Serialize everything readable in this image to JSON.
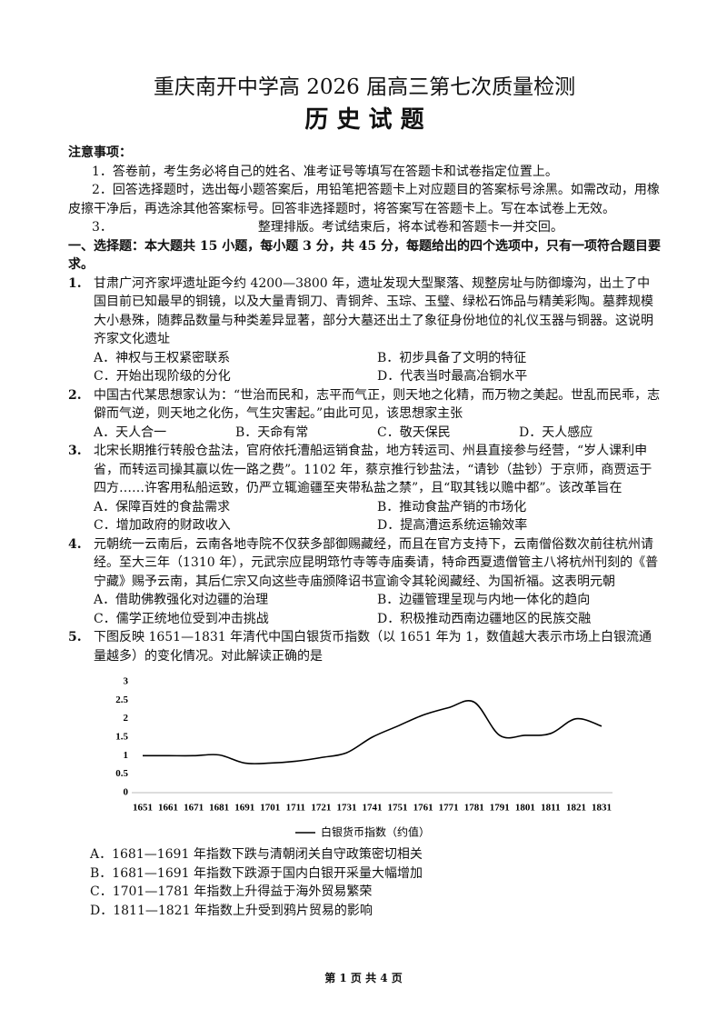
{
  "header": {
    "title": "重庆南开中学高 2026 届高三第七次质量检测",
    "subject": "历 史 试 题"
  },
  "notes": {
    "heading": "注意事项：",
    "items": [
      {
        "number": "1．",
        "text": "答卷前，考生务必将自己的姓名、准考证号等填写在答题卡和试卷指定位置上。"
      },
      {
        "number": "2．",
        "text": "回答选择题时，选出每小题答案后，用铅笔把答题卡上对应题目的答案标号涂黑。如需改动，用橡皮擦干净后，再选涂其他答案标号。回答非选择题时，将答案写在答题卡上。写在本试卷上无效。"
      },
      {
        "number": "3．",
        "text": "整理排版。考试结束后，将本试卷和答题卡一并交回。"
      }
    ]
  },
  "section": {
    "heading": "一、选择题：本大题共 15 小题，每小题 3 分，共 45 分，每题给出的四个选项中，只有一项符合题目要求。"
  },
  "questions": [
    {
      "number": "1.",
      "stem": "甘肃广河齐家坪遗址距今约 4200—3800 年，遗址发现大型聚落、规整房址与防御壕沟，出土了中国目前已知最早的铜镜，以及大量青铜刀、青铜斧、玉琮、玉璧、绿松石饰品与精美彩陶。墓葬规模大小悬殊，随葬品数量与种类差异显著，部分大墓还出土了象征身份地位的礼仪玉器与铜器。这说明齐家文化遗址",
      "options": [
        "A．神权与王权紧密联系",
        "B．初步具备了文明的特征",
        "C．开始出现阶级的分化",
        "D．代表当时最高冶铜水平"
      ]
    },
    {
      "number": "2.",
      "stem": "中国古代某思想家认为：“世治而民和，志平而气正，则天地之化精，而万物之美起。世乱而民乖，志僻而气逆，则天地之化伤，气生灾害起。”由此可见，该思想家主张",
      "options": [
        "A．天人合一",
        "B．天命有常",
        "C．敬天保民",
        "D．天人感应"
      ]
    },
    {
      "number": "3.",
      "stem": "北宋长期推行转般仓盐法，官府依托漕船运销食盐，地方转运司、州县直接参与经营，“岁人课利申省，而转运司操其赢以佐一路之费”。1102 年，蔡京推行钞盐法，“请钞（盐钞）于京师，商贾运于四方……许客用私船运致，仍严立辄逾疆至夹带私盐之禁”，且“取其钱以赡中都”。该改革旨在",
      "options": [
        "A．保障百姓的食盐需求",
        "B．推动食盐产销的市场化",
        "C．增加政府的财政收入",
        "D．提高漕运系统运输效率"
      ]
    },
    {
      "number": "4.",
      "stem": "元朝统一云南后，云南各地寺院不仅获多部御赐藏经，而且在官方支持下，云南僧俗数次前往杭州请经。至大三年（1310 年），元武宗应昆明筇竹寺等寺庙奏请，特命西夏遗僧管主八将杭州刊刻的《普宁藏》赐予云南，其后仁宗又向这些寺庙颁降诏书宣谕令其轮阅藏经、为国祈福。这表明元朝",
      "options": [
        "A．借助佛教强化对边疆的治理",
        "B．边疆管理呈现与内地一体化的趋向",
        "C．儒学正统地位受到冲击挑战",
        "D．积极推动西南边疆地区的民族交融"
      ]
    },
    {
      "number": "5.",
      "stem": "下图反映 1651—1831 年清代中国白银货币指数（以 1651 年为 1，数值越大表示市场上白银流通量越多）的变化情况。对此解读正确的是",
      "options": [
        "A．1681—1691 年指数下跌与清朝闭关自守政策密切相关",
        "B．1681—1691 年指数下跌源于国内白银开采量大幅增加",
        "C．1701—1781 年指数上升得益于海外贸易繁荣",
        "D．1811—1821 年指数上升受到鸦片贸易的影响"
      ]
    }
  ],
  "chart_data": {
    "type": "line",
    "categories": [
      "1651",
      "1661",
      "1671",
      "1681",
      "1691",
      "1701",
      "1711",
      "1721",
      "1731",
      "1741",
      "1751",
      "1761",
      "1771",
      "1781",
      "1791",
      "1801",
      "1811",
      "1821",
      "1831"
    ],
    "series": [
      {
        "name": "白银货币指数（约值）",
        "color": "#000000",
        "values": [
          1,
          1,
          1,
          1.02,
          0.8,
          0.8,
          0.85,
          0.95,
          1.08,
          1.5,
          1.8,
          2.1,
          2.3,
          2.45,
          1.55,
          1.55,
          1.6,
          2,
          1.8
        ]
      }
    ],
    "ylim": [
      0,
      3
    ],
    "yticks": [
      0,
      0.5,
      1,
      1.5,
      2,
      2.5,
      3
    ],
    "grid": false
  },
  "footer": {
    "page": "第 1 页 共 4 页"
  }
}
